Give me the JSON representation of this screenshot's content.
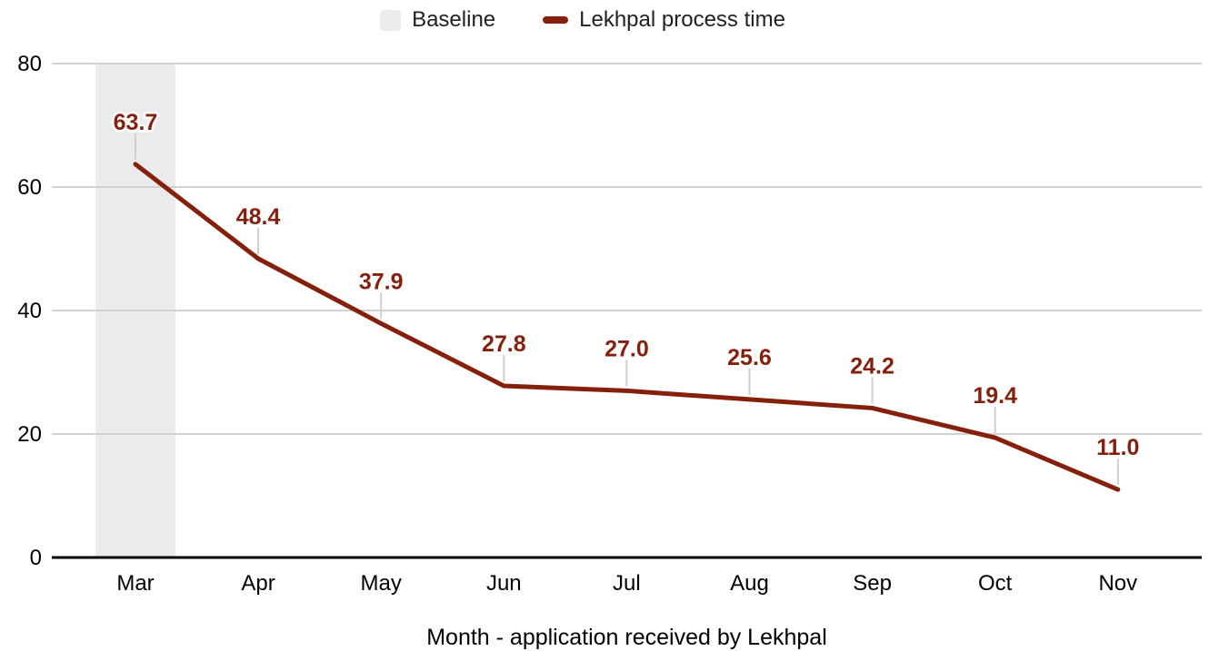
{
  "legend": {
    "items": [
      {
        "label": "Baseline",
        "swatch": "box",
        "color": "#ebebeb"
      },
      {
        "label": "Lekhpal process time",
        "swatch": "line",
        "color": "#85200c"
      }
    ]
  },
  "chart_data": {
    "type": "line",
    "title": "",
    "categories": [
      "Mar",
      "Apr",
      "May",
      "Jun",
      "Jul",
      "Aug",
      "Sep",
      "Oct",
      "Nov"
    ],
    "series": [
      {
        "name": "Lekhpal process time",
        "color": "#85200c",
        "values": [
          63.7,
          48.4,
          37.9,
          27.8,
          27.0,
          25.6,
          24.2,
          19.4,
          11.0
        ]
      }
    ],
    "baseline_band": {
      "label": "Baseline",
      "category": "Mar",
      "color": "#ebebeb"
    },
    "data_labels": true,
    "data_label_color": "#85200c",
    "xlabel": "Month - application received by Lekhpal",
    "ylabel": "",
    "ylim": [
      0,
      80
    ],
    "yticks": [
      0,
      20,
      40,
      60,
      80
    ],
    "grid": true,
    "gridline_color": "#d2d2d2",
    "axis_line_color": "#000000",
    "legend_position": "top"
  }
}
